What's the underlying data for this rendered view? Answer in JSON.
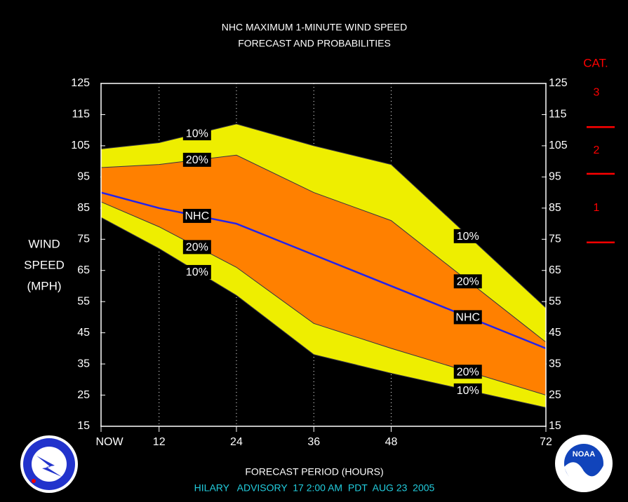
{
  "chart_data": {
    "type": "area",
    "title": [
      "NHC MAXIMUM 1-MINUTE WIND SPEED",
      "FORECAST AND PROBABILITIES"
    ],
    "ylabel": [
      "WIND",
      "SPEED",
      "(MPH)"
    ],
    "xlabel": "FORECAST PERIOD (HOURS)",
    "footer": "HILARY   ADVISORY  17 2:00 AM  PDT  AUG 23  2005",
    "x": [
      3,
      12,
      24,
      36,
      48,
      72
    ],
    "xlim": [
      3,
      72
    ],
    "xticks": [
      {
        "value": 3,
        "label": "NOW"
      },
      12,
      24,
      36,
      48,
      72
    ],
    "ylim": [
      15,
      125
    ],
    "yticks": [
      15,
      25,
      35,
      45,
      55,
      65,
      75,
      85,
      95,
      105,
      115,
      125
    ],
    "series": [
      {
        "name": "10%",
        "color": "#eeee00",
        "values": [
          104,
          106,
          112,
          105,
          99,
          53
        ]
      },
      {
        "name": "20%",
        "color": "#ff8000",
        "values": [
          98,
          99,
          102,
          90,
          81,
          42
        ]
      },
      {
        "name": "NHC",
        "color": "#2222ee",
        "values": [
          90,
          85,
          80,
          70,
          60,
          40
        ]
      },
      {
        "name": "20%",
        "color": "#ff8000",
        "values": [
          87,
          79,
          66,
          48,
          40,
          25
        ]
      },
      {
        "name": "10%",
        "color": "#eeee00",
        "values": [
          82,
          72,
          57,
          38,
          32,
          21
        ]
      }
    ],
    "category_scale": {
      "title": "CAT.",
      "labels": [
        "3",
        "2",
        "1"
      ],
      "thresholds": [
        111,
        96,
        74
      ],
      "color": "#ff0000"
    }
  }
}
